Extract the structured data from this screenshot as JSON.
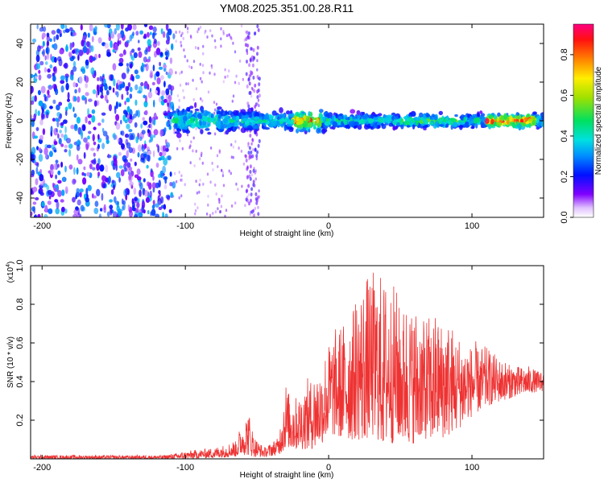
{
  "title": "YM08.2025.351.00.28.R11",
  "chart_data": [
    {
      "type": "heatmap",
      "name": "spectrogram",
      "xlabel": "Height of straight line (km)",
      "ylabel": "Frequency (Hz)",
      "xlim": [
        -208,
        150
      ],
      "ylim": [
        -50,
        50
      ],
      "xticks": [
        -200,
        -100,
        0,
        100
      ],
      "yticks": [
        -40,
        -20,
        0,
        20,
        40
      ],
      "colorbar": {
        "label": "Normalized spectral amplitude",
        "range": [
          0,
          0.95
        ],
        "ticks": [
          0.0,
          0.2,
          0.4,
          0.6,
          0.8
        ]
      },
      "regions": [
        {
          "x_range": [
            -208,
            -108
          ],
          "description": "broadband noise, amplitude ~0.1-0.35 across all frequencies"
        },
        {
          "x_range": [
            -108,
            150
          ],
          "freq_band": [
            -8,
            8
          ],
          "description": "narrow band near 0 Hz, amplitude rising to ~0.9 near x=-15 and x=115-140"
        },
        {
          "x_range": [
            -58,
            -48
          ],
          "description": "faint vertical streak across frequencies"
        }
      ]
    },
    {
      "type": "line",
      "name": "snr",
      "xlabel": "Height of straight line (km)",
      "ylabel": "SNR (10 * v/v)",
      "y_multiplier": "(x10",
      "y_exponent": "4",
      "y_multiplier_close": ")",
      "xlim": [
        -208,
        150
      ],
      "ylim": [
        0,
        1.0
      ],
      "xticks": [
        -200,
        -100,
        0,
        100
      ],
      "yticks": [
        0.2,
        0.4,
        0.6,
        0.8,
        1.0
      ],
      "ytick_labels": [
        "0.2",
        "0.4",
        "0.6",
        "0.8",
        "1.0"
      ],
      "color": "#ee3333",
      "envelope": {
        "x": [
          -208,
          -150,
          -115,
          -100,
          -80,
          -65,
          -60,
          -56,
          -52,
          -45,
          -35,
          -30,
          -28,
          -20,
          -10,
          -5,
          0,
          10,
          20,
          30,
          40,
          50,
          60,
          70,
          80,
          90,
          100,
          110,
          120,
          130,
          140,
          150
        ],
        "low": [
          0.0,
          0.0,
          0.0,
          0.0,
          0.005,
          0.01,
          0.02,
          0.02,
          0.01,
          0.01,
          0.02,
          0.05,
          0.05,
          0.05,
          0.05,
          0.08,
          0.1,
          0.1,
          0.1,
          0.08,
          0.08,
          0.08,
          0.08,
          0.1,
          0.1,
          0.15,
          0.22,
          0.27,
          0.3,
          0.32,
          0.34,
          0.35
        ],
        "high": [
          0.02,
          0.02,
          0.02,
          0.04,
          0.06,
          0.1,
          0.2,
          0.26,
          0.12,
          0.06,
          0.12,
          0.42,
          0.35,
          0.35,
          0.48,
          0.5,
          0.65,
          0.72,
          0.9,
          1.0,
          0.95,
          0.87,
          0.83,
          0.75,
          0.78,
          0.66,
          0.62,
          0.58,
          0.52,
          0.5,
          0.48,
          0.46
        ]
      }
    }
  ]
}
